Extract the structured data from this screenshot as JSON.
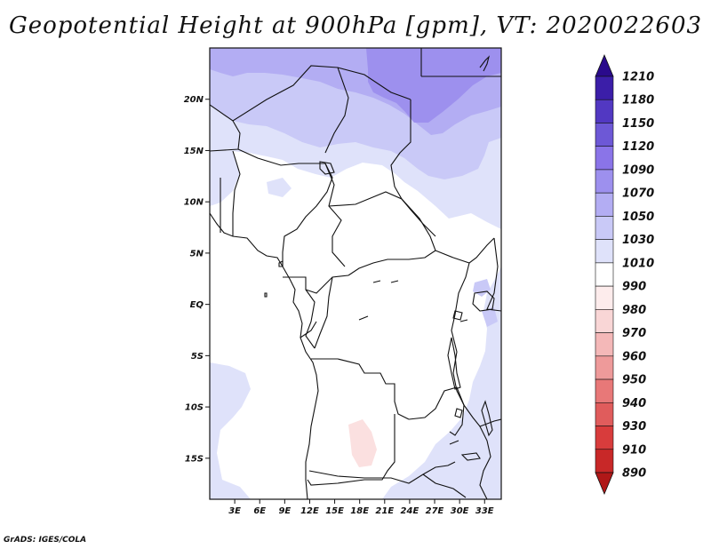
{
  "title": "Geopotential Height at 900hPa [gpm], VT: 2020022603",
  "footer": "GrADS: IGES/COLA",
  "chart_data": {
    "type": "heatmap",
    "variable": "Geopotential Height",
    "level": "900hPa",
    "units": "gpm",
    "valid_time": "2020022603",
    "lon_range": [
      0,
      35
    ],
    "lat_range": [
      -19,
      25
    ],
    "x_ticks": [
      "3E",
      "6E",
      "9E",
      "12E",
      "15E",
      "18E",
      "21E",
      "24E",
      "27E",
      "30E",
      "33E"
    ],
    "y_ticks": [
      "20N",
      "15N",
      "10N",
      "5N",
      "EQ",
      "5S",
      "10S",
      "15S"
    ],
    "colorbar_levels": [
      890,
      910,
      930,
      940,
      950,
      960,
      970,
      980,
      990,
      1010,
      1030,
      1050,
      1070,
      1090,
      1120,
      1150,
      1180,
      1210
    ],
    "colorbar_labels": [
      "1210",
      "1180",
      "1150",
      "1120",
      "1090",
      "1070",
      "1050",
      "1030",
      "1010",
      "990",
      "980",
      "970",
      "960",
      "950",
      "940",
      "930",
      "910",
      "890"
    ],
    "colorbar_colors": [
      "#b01818",
      "#c82828",
      "#d83c3c",
      "#e05c5c",
      "#e87878",
      "#ee9a9a",
      "#f4b8b8",
      "#f9d6d6",
      "#fdecec",
      "#ffffff",
      "#dfe2fa",
      "#c9c9f7",
      "#b3adf3",
      "#9d90ee",
      "#8a74e8",
      "#6d58d6",
      "#5238c2",
      "#3b1ea8",
      "#2a0a8c"
    ],
    "field_colors": {
      "white": "#ffffff",
      "level_1010_1030": "#dfe2fa",
      "level_1030_1050": "#c9c9f7",
      "level_1050_1070": "#b3adf3",
      "level_1070_1090": "#9d90ee",
      "level_990_980": "#fbe0e0"
    }
  }
}
